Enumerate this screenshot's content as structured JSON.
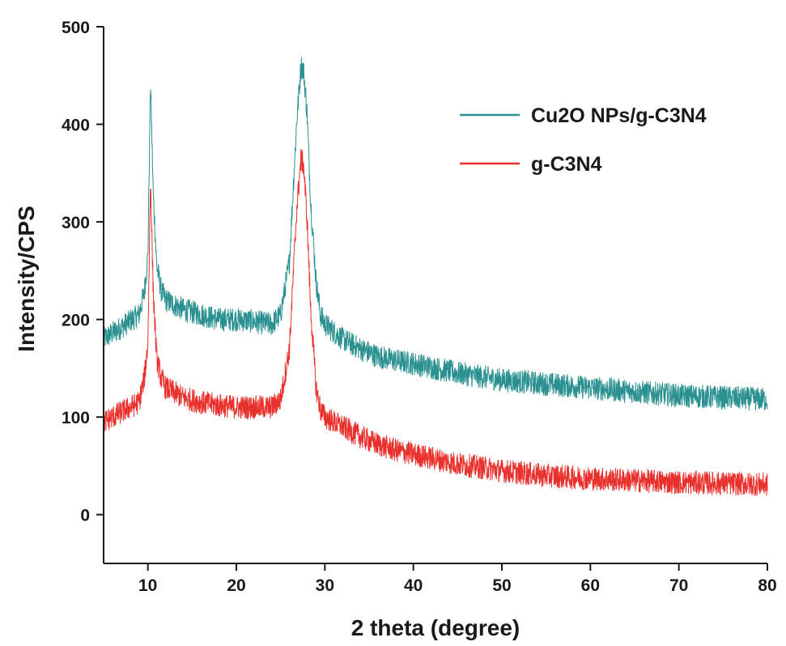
{
  "chart_data": {
    "type": "line",
    "xlabel": "2 theta (degree)",
    "ylabel": "Intensity/CPS",
    "xlim": [
      5,
      80
    ],
    "ylim": [
      -50,
      500
    ],
    "x_ticks": [
      10,
      20,
      30,
      40,
      50,
      60,
      70,
      80
    ],
    "y_ticks": [
      0,
      100,
      200,
      300,
      400,
      500
    ],
    "grid": false,
    "legend_position": "top-right",
    "series": [
      {
        "name": "Cu2O NPs/g-C3N4",
        "color": "#2a9090",
        "noise": 12,
        "x": [
          5,
          7,
          9,
          9.6,
          10,
          10.3,
          10.6,
          11,
          11.5,
          12,
          14,
          16,
          18,
          20,
          22,
          24,
          25,
          26,
          26.8,
          27.3,
          27.6,
          28,
          28.4,
          29,
          29.5,
          30,
          32,
          34,
          36,
          38,
          40,
          45,
          50,
          55,
          60,
          65,
          70,
          75,
          80
        ],
        "y": [
          180,
          192,
          205,
          228,
          265,
          445,
          330,
          255,
          230,
          220,
          210,
          205,
          200,
          200,
          198,
          195,
          205,
          260,
          400,
          460,
          455,
          410,
          320,
          240,
          205,
          195,
          180,
          170,
          162,
          158,
          155,
          145,
          138,
          134,
          130,
          126,
          122,
          120,
          118
        ]
      },
      {
        "name": "g-C3N4",
        "color": "#e8302c",
        "noise": 12,
        "x": [
          5,
          7,
          9,
          9.6,
          10,
          10.3,
          10.6,
          11,
          11.5,
          12,
          14,
          16,
          18,
          20,
          22,
          24,
          25,
          26,
          26.8,
          27.3,
          27.6,
          28,
          28.4,
          29,
          29.5,
          30,
          32,
          34,
          36,
          38,
          40,
          45,
          50,
          55,
          60,
          65,
          70,
          75,
          80
        ],
        "y": [
          95,
          105,
          115,
          140,
          175,
          345,
          230,
          160,
          140,
          130,
          120,
          115,
          112,
          110,
          110,
          110,
          118,
          170,
          310,
          365,
          358,
          300,
          210,
          130,
          108,
          100,
          90,
          80,
          72,
          66,
          62,
          52,
          45,
          40,
          37,
          35,
          33,
          32,
          31
        ]
      }
    ]
  }
}
